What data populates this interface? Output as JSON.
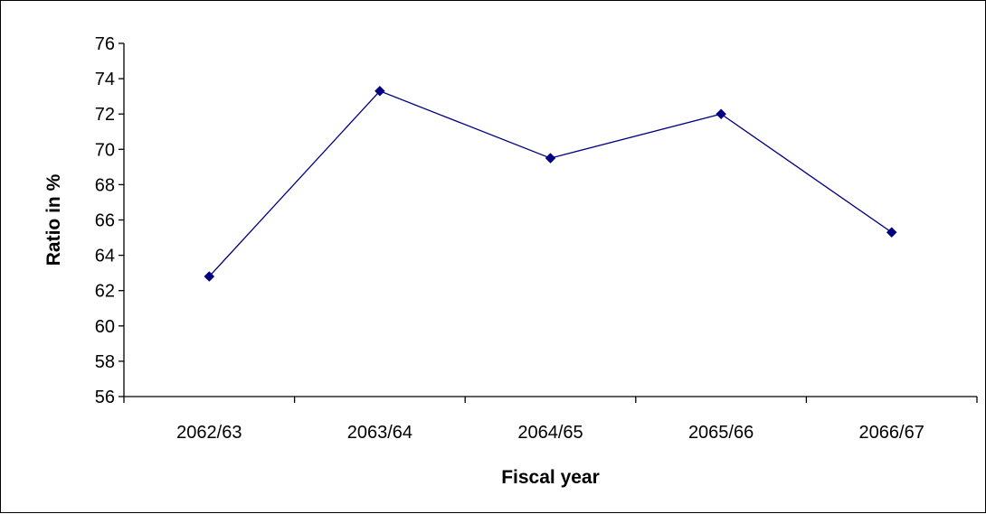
{
  "chart_data": {
    "type": "line",
    "title": "",
    "xlabel": "Fiscal year",
    "ylabel": "Ratio in %",
    "categories": [
      "2062/63",
      "2063/64",
      "2064/65",
      "2065/66",
      "2066/67"
    ],
    "series": [
      {
        "values": [
          62.8,
          73.3,
          69.5,
          72.0,
          65.3
        ]
      }
    ],
    "ylim": [
      56,
      76
    ],
    "ytick_step": 2,
    "grid": false,
    "legend": "none",
    "colors": {
      "line": "#000080",
      "marker": "#000080",
      "axis": "#000000"
    }
  }
}
